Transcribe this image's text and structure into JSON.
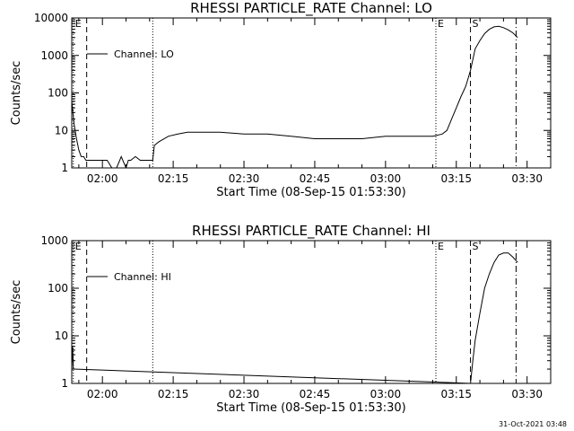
{
  "footer": {
    "timestamp": "31-Oct-2021 03:48"
  },
  "chart_data": [
    {
      "type": "line",
      "title": "RHESSI PARTICLE_RATE Channel: LO",
      "xlabel": "Start Time (08-Sep-15 01:53:30)",
      "ylabel": "Counts/sec",
      "yscale": "log",
      "xlim": [
        "01:53:30",
        "03:35:00"
      ],
      "ylim": [
        1,
        10000
      ],
      "x_ticks": [
        "02:00",
        "02:15",
        "02:30",
        "02:45",
        "03:00",
        "03:15",
        "03:30"
      ],
      "y_ticks": [
        "1",
        "10",
        "100",
        "1000",
        "10000"
      ],
      "legend": {
        "position": "top-left",
        "entries": [
          "Channel: LO"
        ]
      },
      "markers": [
        {
          "label": "E",
          "time": "01:53:50",
          "style": "dotted"
        },
        {
          "label": "",
          "time": "01:56:40",
          "style": "dashed"
        },
        {
          "label": "",
          "time": "02:10:40",
          "style": "dotted"
        },
        {
          "label": "E",
          "time": "03:10:40",
          "style": "dotted"
        },
        {
          "label": "S",
          "time": "03:18:00",
          "style": "dashed"
        },
        {
          "label": "",
          "time": "03:27:40",
          "style": "dashdot"
        }
      ],
      "series": [
        {
          "name": "Channel: LO",
          "x": [
            "01:53:30",
            "01:54:00",
            "01:54:30",
            "01:55:00",
            "01:55:30",
            "01:56:00",
            "01:56:30",
            "01:57:00",
            "01:58:00",
            "01:59:00",
            "02:00:00",
            "02:01:00",
            "02:02:00",
            "02:03:00",
            "02:04:00",
            "02:05:00",
            "02:05:30",
            "02:06:00",
            "02:07:00",
            "02:08:00",
            "02:09:00",
            "02:10:00",
            "02:10:40",
            "02:11:00",
            "02:12:00",
            "02:14:00",
            "02:16:00",
            "02:18:00",
            "02:20:00",
            "02:25:00",
            "02:30:00",
            "02:35:00",
            "02:40:00",
            "02:45:00",
            "02:50:00",
            "02:55:00",
            "03:00:00",
            "03:05:00",
            "03:10:00",
            "03:12:00",
            "03:13:00",
            "03:14:00",
            "03:15:00",
            "03:16:00",
            "03:17:00",
            "03:18:00",
            "03:19:00",
            "03:20:00",
            "03:21:00",
            "03:22:00",
            "03:23:00",
            "03:24:00",
            "03:25:00",
            "03:26:00",
            "03:27:00",
            "03:28:00"
          ],
          "y": [
            60,
            15,
            6,
            3,
            2,
            2,
            1.6,
            1.6,
            1.6,
            1.6,
            1.6,
            1.6,
            1,
            1,
            2,
            1,
            1.6,
            1.6,
            2,
            1.6,
            1.6,
            1.6,
            1.6,
            4,
            5,
            7,
            8,
            9,
            9,
            9,
            8,
            8,
            7,
            6,
            6,
            6,
            7,
            7,
            7,
            8,
            10,
            20,
            40,
            80,
            150,
            400,
            1500,
            2500,
            3800,
            5000,
            5800,
            6000,
            5500,
            4800,
            4000,
            3000
          ]
        }
      ]
    },
    {
      "type": "line",
      "title": "RHESSI PARTICLE_RATE Channel: HI",
      "xlabel": "Start Time (08-Sep-15 01:53:30)",
      "ylabel": "Counts/sec",
      "yscale": "log",
      "xlim": [
        "01:53:30",
        "03:35:00"
      ],
      "ylim": [
        1,
        1000
      ],
      "x_ticks": [
        "02:00",
        "02:15",
        "02:30",
        "02:45",
        "03:00",
        "03:15",
        "03:30"
      ],
      "y_ticks": [
        "1",
        "10",
        "100",
        "1000"
      ],
      "legend": {
        "position": "top-left",
        "entries": [
          "Channel: HI"
        ]
      },
      "markers": [
        {
          "label": "E",
          "time": "01:53:50",
          "style": "dotted"
        },
        {
          "label": "",
          "time": "01:56:40",
          "style": "dashed"
        },
        {
          "label": "",
          "time": "02:10:40",
          "style": "dotted"
        },
        {
          "label": "E",
          "time": "03:10:40",
          "style": "dotted"
        },
        {
          "label": "S",
          "time": "03:18:00",
          "style": "dashed"
        },
        {
          "label": "",
          "time": "03:27:40",
          "style": "dashdot"
        }
      ],
      "series": [
        {
          "name": "Channel: HI",
          "x": [
            "01:53:30",
            "01:53:40",
            "01:53:50",
            "03:18:00",
            "03:18:30",
            "03:19:00",
            "03:20:00",
            "03:21:00",
            "03:22:00",
            "03:23:00",
            "03:24:00",
            "03:25:00",
            "03:26:00",
            "03:27:00",
            "03:28:00"
          ],
          "y": [
            2,
            6,
            2,
            1,
            3,
            8,
            30,
            100,
            200,
            350,
            500,
            550,
            550,
            450,
            350
          ]
        }
      ]
    }
  ]
}
